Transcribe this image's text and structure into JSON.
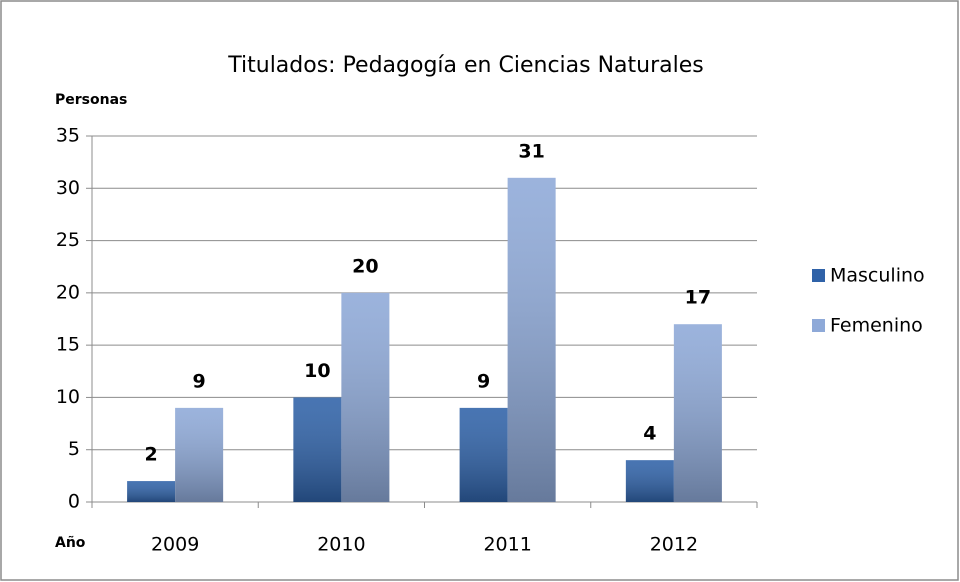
{
  "chart_data": {
    "type": "bar",
    "title": "Titulados: Pedagogía en Ciencias Naturales",
    "y_label": "Personas",
    "x_label": "Año",
    "categories": [
      "2009",
      "2010",
      "2011",
      "2012"
    ],
    "series": [
      {
        "name": "Masculino",
        "color": "#2f62a8",
        "values": [
          2,
          10,
          9,
          4
        ]
      },
      {
        "name": "Femenino",
        "color": "#8ea9d8",
        "values": [
          9,
          20,
          31,
          17
        ]
      }
    ],
    "ylim": [
      0,
      35
    ],
    "yticks": [
      0,
      5,
      10,
      15,
      20,
      25,
      30,
      35
    ],
    "grid": true,
    "legend": "right",
    "data_labels": true
  }
}
